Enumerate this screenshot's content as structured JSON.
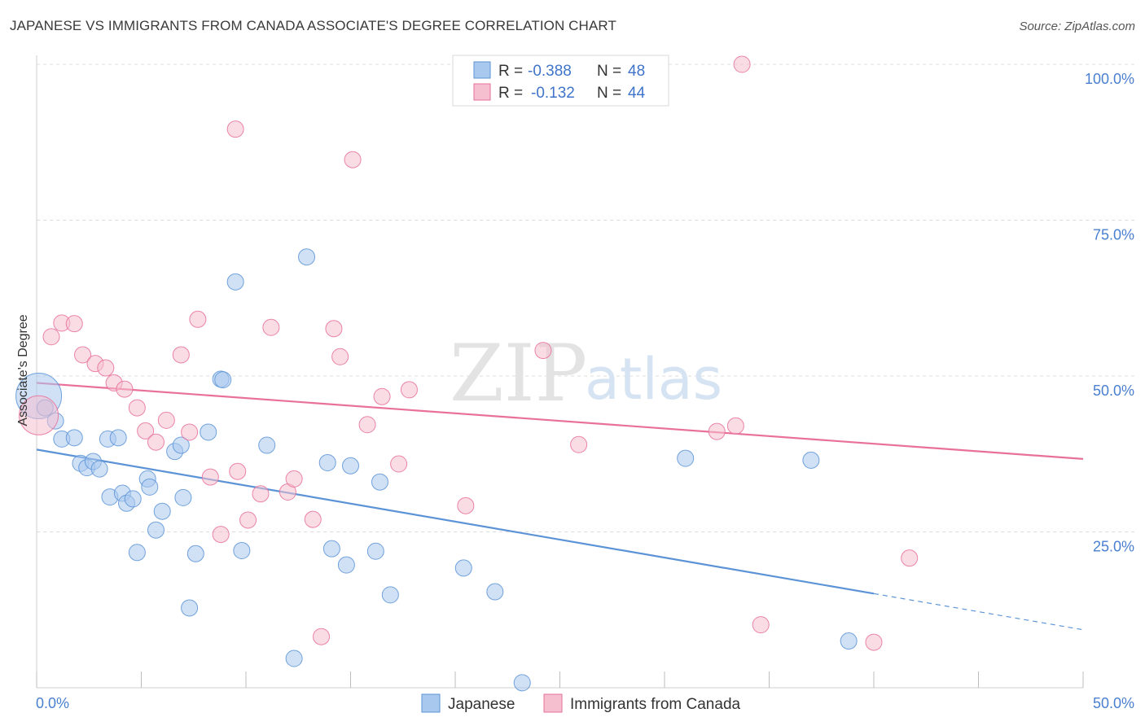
{
  "header": {
    "title": "JAPANESE VS IMMIGRANTS FROM CANADA ASSOCIATE'S DEGREE CORRELATION CHART",
    "source": "Source: ZipAtlas.com"
  },
  "watermark": {
    "zip": "ZIP",
    "atlas": "atlas"
  },
  "chart_data": {
    "type": "scatter",
    "xlabel": "",
    "ylabel": "Associate's Degree",
    "xlim": [
      0,
      50
    ],
    "ylim": [
      0,
      100
    ],
    "x_tick_labels": [
      "0.0%",
      "50.0%"
    ],
    "y_ticks": [
      25,
      50,
      75,
      100
    ],
    "y_tick_labels": [
      "25.0%",
      "50.0%",
      "75.0%",
      "100.0%"
    ],
    "grid": true,
    "legend_placement": "top-center",
    "stats": [
      {
        "r_label": "R =",
        "r_value": "-0.388",
        "n_label": "N =",
        "n_value": "48"
      },
      {
        "r_label": "R =",
        "r_value": "-0.132",
        "n_label": "N =",
        "n_value": "44"
      }
    ],
    "series": [
      {
        "name": "Japanese",
        "color": "#5b93d6",
        "fill": "#a9c8ee",
        "trend": {
          "x0": 0,
          "y0": 38.2,
          "x1": 40,
          "y1": 15.1,
          "dash_to_x": 50,
          "dash_to_y": 9.3
        },
        "points": [
          [
            0.1,
            46.8,
            28
          ],
          [
            0.4,
            44.9,
            10
          ],
          [
            0.9,
            42.8,
            10
          ],
          [
            1.2,
            39.9,
            10
          ],
          [
            1.8,
            40.1,
            10
          ],
          [
            2.1,
            36.0,
            10
          ],
          [
            2.4,
            35.3,
            10
          ],
          [
            2.7,
            36.3,
            10
          ],
          [
            3.0,
            35.1,
            10
          ],
          [
            3.4,
            39.9,
            10
          ],
          [
            3.5,
            30.6,
            10
          ],
          [
            3.9,
            40.1,
            10
          ],
          [
            4.1,
            31.2,
            10
          ],
          [
            4.3,
            29.6,
            10
          ],
          [
            4.6,
            30.3,
            10
          ],
          [
            4.8,
            21.7,
            10
          ],
          [
            5.3,
            33.5,
            10
          ],
          [
            5.4,
            32.2,
            10
          ],
          [
            5.7,
            25.3,
            10
          ],
          [
            6.0,
            28.3,
            10
          ],
          [
            6.6,
            37.9,
            10
          ],
          [
            6.9,
            38.9,
            10
          ],
          [
            7.0,
            30.5,
            10
          ],
          [
            7.3,
            12.8,
            10
          ],
          [
            7.6,
            21.5,
            10
          ],
          [
            8.2,
            41.0,
            10
          ],
          [
            8.8,
            49.5,
            10
          ],
          [
            8.9,
            49.4,
            10
          ],
          [
            9.5,
            65.1,
            10
          ],
          [
            9.8,
            22.0,
            10
          ],
          [
            11.0,
            38.9,
            10
          ],
          [
            12.3,
            4.7,
            10
          ],
          [
            12.9,
            69.1,
            10
          ],
          [
            13.9,
            36.1,
            10
          ],
          [
            14.1,
            22.3,
            10
          ],
          [
            14.8,
            19.7,
            10
          ],
          [
            15.0,
            35.6,
            10
          ],
          [
            16.2,
            21.9,
            10
          ],
          [
            16.4,
            33.0,
            10
          ],
          [
            16.9,
            14.9,
            10
          ],
          [
            20.4,
            19.2,
            10
          ],
          [
            21.9,
            15.4,
            10
          ],
          [
            23.2,
            0.8,
            10
          ],
          [
            31.0,
            36.8,
            10
          ],
          [
            37.0,
            36.5,
            10
          ],
          [
            38.8,
            7.5,
            10
          ]
        ]
      },
      {
        "name": "Immigrants from Canada",
        "color": "#e8709a",
        "fill": "#f6bfd0",
        "trend": {
          "x0": 0,
          "y0": 48.9,
          "x1": 50,
          "y1": 36.7
        },
        "points": [
          [
            0.1,
            43.7,
            24
          ],
          [
            0.7,
            56.3,
            10
          ],
          [
            1.2,
            58.5,
            10
          ],
          [
            1.8,
            58.4,
            10
          ],
          [
            2.2,
            53.4,
            10
          ],
          [
            2.8,
            52.0,
            10
          ],
          [
            3.3,
            51.3,
            10
          ],
          [
            3.7,
            48.9,
            10
          ],
          [
            4.2,
            47.9,
            10
          ],
          [
            4.8,
            44.9,
            10
          ],
          [
            5.2,
            41.2,
            10
          ],
          [
            5.7,
            39.4,
            10
          ],
          [
            6.2,
            42.9,
            10
          ],
          [
            6.9,
            53.4,
            10
          ],
          [
            7.3,
            41.0,
            10
          ],
          [
            7.7,
            59.1,
            10
          ],
          [
            8.3,
            33.8,
            10
          ],
          [
            8.8,
            24.6,
            10
          ],
          [
            9.5,
            89.6,
            10
          ],
          [
            9.6,
            34.7,
            10
          ],
          [
            10.1,
            26.9,
            10
          ],
          [
            10.7,
            31.1,
            10
          ],
          [
            11.2,
            57.8,
            10
          ],
          [
            12.0,
            31.4,
            10
          ],
          [
            12.3,
            33.5,
            10
          ],
          [
            13.2,
            27.0,
            10
          ],
          [
            13.6,
            8.2,
            10
          ],
          [
            14.2,
            57.6,
            10
          ],
          [
            14.5,
            53.1,
            10
          ],
          [
            15.1,
            84.7,
            10
          ],
          [
            15.8,
            42.2,
            10
          ],
          [
            16.5,
            46.7,
            10
          ],
          [
            17.3,
            35.9,
            10
          ],
          [
            17.8,
            47.8,
            10
          ],
          [
            20.5,
            29.2,
            10
          ],
          [
            24.2,
            54.1,
            10
          ],
          [
            25.9,
            39.0,
            10
          ],
          [
            32.5,
            41.1,
            10
          ],
          [
            33.4,
            42.0,
            10
          ],
          [
            33.7,
            100.0,
            10
          ],
          [
            34.6,
            10.1,
            10
          ],
          [
            40.0,
            7.3,
            10
          ],
          [
            41.7,
            20.8,
            10
          ]
        ]
      }
    ]
  }
}
